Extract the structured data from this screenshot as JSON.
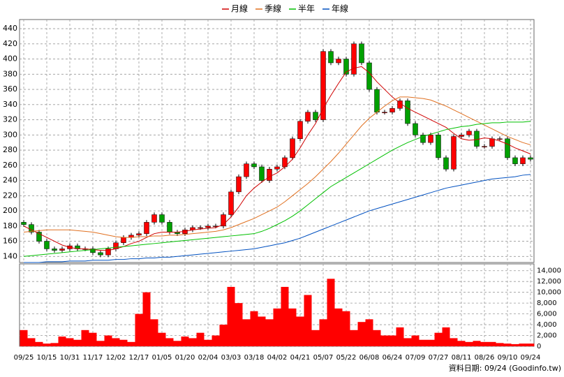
{
  "chart_data": [
    {
      "type": "candlestick",
      "categories": [
        "09/25",
        null,
        null,
        "10/15",
        null,
        null,
        "10/31",
        null,
        null,
        "11/17",
        null,
        null,
        "12/02",
        null,
        null,
        "12/17",
        null,
        null,
        "01/05",
        null,
        null,
        "01/20",
        null,
        null,
        "02/04",
        null,
        null,
        "03/03",
        null,
        null,
        "03/18",
        null,
        null,
        "04/02",
        null,
        null,
        "04/21",
        null,
        null,
        "05/07",
        null,
        null,
        "05/22",
        null,
        null,
        "06/08",
        null,
        null,
        "06/24",
        null,
        null,
        "07/09",
        null,
        null,
        "07/27",
        null,
        null,
        "08/11",
        null,
        null,
        "08/26",
        null,
        null,
        "09/10",
        null,
        null,
        "09/24"
      ],
      "open": [
        185,
        182,
        172,
        160,
        150,
        148,
        150,
        154,
        150,
        150,
        145,
        142,
        150,
        158,
        165,
        168,
        170,
        185,
        195,
        185,
        172,
        170,
        175,
        178,
        178,
        180,
        180,
        195,
        225,
        245,
        262,
        258,
        240,
        255,
        258,
        270,
        295,
        318,
        330,
        320,
        410,
        395,
        400,
        380,
        420,
        395,
        360,
        330,
        330,
        335,
        345,
        315,
        300,
        290,
        300,
        270,
        255,
        298,
        300,
        305,
        285,
        285,
        295,
        295,
        270,
        262,
        270
      ],
      "high": [
        188,
        185,
        175,
        163,
        153,
        153,
        157,
        157,
        153,
        153,
        148,
        153,
        161,
        168,
        171,
        173,
        188,
        198,
        198,
        188,
        175,
        178,
        181,
        181,
        183,
        183,
        198,
        228,
        248,
        265,
        265,
        261,
        258,
        261,
        273,
        298,
        321,
        333,
        333,
        413,
        413,
        403,
        403,
        423,
        423,
        398,
        363,
        333,
        338,
        348,
        348,
        318,
        303,
        303,
        303,
        273,
        301,
        303,
        308,
        308,
        288,
        298,
        298,
        298,
        273,
        273,
        273
      ],
      "low": [
        179,
        169,
        157,
        147,
        145,
        145,
        147,
        147,
        147,
        142,
        139,
        139,
        147,
        155,
        162,
        165,
        167,
        182,
        182,
        169,
        167,
        167,
        172,
        175,
        175,
        177,
        177,
        192,
        222,
        242,
        255,
        237,
        237,
        252,
        255,
        267,
        292,
        315,
        317,
        317,
        392,
        392,
        377,
        377,
        392,
        357,
        327,
        327,
        327,
        332,
        312,
        297,
        287,
        287,
        267,
        252,
        252,
        295,
        297,
        282,
        282,
        282,
        292,
        267,
        259,
        259,
        265
      ],
      "close": [
        182,
        172,
        160,
        150,
        148,
        150,
        154,
        150,
        150,
        145,
        142,
        150,
        158,
        165,
        168,
        170,
        185,
        195,
        185,
        172,
        170,
        175,
        178,
        178,
        180,
        180,
        195,
        225,
        245,
        262,
        258,
        240,
        255,
        258,
        270,
        295,
        318,
        330,
        320,
        410,
        395,
        400,
        380,
        420,
        395,
        360,
        330,
        330,
        335,
        345,
        315,
        300,
        290,
        300,
        270,
        255,
        298,
        300,
        305,
        285,
        285,
        295,
        295,
        270,
        262,
        270,
        268
      ],
      "up_color": "#ff0000",
      "down_color": "#00a000",
      "series": [
        {
          "name": "月線",
          "color": "#d00000",
          "values": [
            180,
            175,
            170,
            165,
            160,
            155,
            152,
            150,
            150,
            149,
            148,
            148,
            150,
            153,
            157,
            160,
            165,
            170,
            172,
            172,
            172,
            173,
            175,
            176,
            177,
            178,
            182,
            192,
            205,
            220,
            230,
            238,
            245,
            250,
            258,
            268,
            283,
            300,
            315,
            335,
            352,
            368,
            383,
            388,
            390,
            382,
            370,
            360,
            350,
            342,
            335,
            330,
            325,
            320,
            315,
            310,
            302,
            295,
            293,
            294,
            296,
            295,
            292,
            288,
            283,
            279,
            275
          ]
        },
        {
          "name": "季線",
          "color": "#e07020",
          "values": [
            172,
            173,
            174,
            175,
            175,
            175,
            175,
            174,
            173,
            172,
            170,
            168,
            166,
            165,
            165,
            166,
            166,
            167,
            167,
            168,
            168,
            169,
            170,
            171,
            172,
            173,
            175,
            178,
            182,
            186,
            190,
            195,
            200,
            205,
            212,
            220,
            228,
            236,
            245,
            255,
            265,
            276,
            288,
            300,
            312,
            322,
            330,
            338,
            345,
            350,
            350,
            349,
            348,
            346,
            342,
            338,
            333,
            328,
            323,
            318,
            313,
            308,
            303,
            298,
            294,
            290,
            287
          ]
        },
        {
          "name": "半年",
          "color": "#00c000",
          "values": [
            140,
            141,
            142,
            143,
            144,
            145,
            146,
            147,
            148,
            149,
            150,
            151,
            152,
            153,
            154,
            155,
            156,
            157,
            158,
            159,
            160,
            161,
            162,
            163,
            164,
            165,
            166,
            167,
            168,
            169,
            170,
            173,
            177,
            182,
            187,
            193,
            200,
            208,
            216,
            224,
            232,
            238,
            244,
            250,
            256,
            262,
            268,
            274,
            280,
            285,
            290,
            294,
            298,
            301,
            304,
            307,
            309,
            311,
            312,
            314,
            315,
            316,
            316,
            317,
            317,
            317,
            318
          ]
        },
        {
          "name": "年線",
          "color": "#0050c0",
          "values": [
            132,
            132,
            132,
            133,
            133,
            133,
            134,
            134,
            134,
            135,
            135,
            135,
            136,
            136,
            137,
            137,
            138,
            138,
            139,
            139,
            140,
            141,
            142,
            143,
            144,
            145,
            146,
            147,
            148,
            149,
            150,
            152,
            154,
            156,
            158,
            161,
            164,
            168,
            172,
            176,
            180,
            184,
            188,
            192,
            196,
            200,
            203,
            206,
            209,
            212,
            215,
            218,
            221,
            224,
            227,
            230,
            232,
            234,
            236,
            238,
            240,
            242,
            243,
            244,
            245,
            247,
            248
          ]
        }
      ],
      "ylim": [
        132,
        452
      ],
      "yticks": [
        140,
        160,
        180,
        200,
        220,
        240,
        260,
        280,
        300,
        320,
        340,
        360,
        380,
        400,
        420,
        440
      ],
      "grid": true
    },
    {
      "type": "bar",
      "color": "#ff0000",
      "values": [
        3000,
        1500,
        800,
        500,
        600,
        1800,
        1500,
        1200,
        3000,
        2500,
        1000,
        2000,
        1500,
        1200,
        800,
        6000,
        10000,
        5000,
        2500,
        1500,
        1000,
        1800,
        1500,
        2500,
        1200,
        2000,
        4000,
        11000,
        8000,
        5000,
        6500,
        5500,
        5000,
        7000,
        11000,
        7000,
        5500,
        9500,
        3000,
        5000,
        12500,
        7000,
        6500,
        3000,
        4500,
        5000,
        3000,
        2000,
        2000,
        3500,
        1500,
        2000,
        1200,
        1200,
        2500,
        3500,
        1500,
        1000,
        800,
        1000,
        800,
        800,
        600,
        500,
        400,
        500,
        500
      ],
      "ylim": [
        0,
        15000
      ],
      "yticks": [
        0,
        {
          "value": 2000,
          "label": "2,000"
        },
        {
          "value": 4000,
          "label": "4,000"
        },
        {
          "value": 6000,
          "label": "6,000"
        },
        {
          "value": 8000,
          "label": "8,000"
        },
        {
          "value": 10000,
          "label": "10,000"
        },
        {
          "value": 12000,
          "label": "12,000"
        },
        {
          "value": 14000,
          "label": "14,000"
        }
      ],
      "grid": true,
      "annotation": "資料日期: 09/24 (Goodinfo.tw)"
    }
  ]
}
